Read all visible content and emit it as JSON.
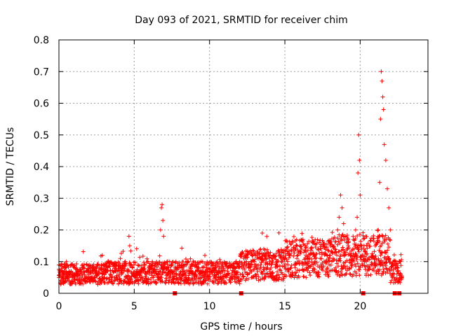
{
  "chart_data": {
    "type": "scatter",
    "title": "Day 093 of 2021, SRMTID for receiver chim",
    "xlabel": "GPS time / hours",
    "ylabel": "SRMTID / TECUs",
    "xlim": [
      0,
      24.5
    ],
    "ylim": [
      0,
      0.8
    ],
    "x_ticks": [
      0,
      5,
      10,
      15,
      20
    ],
    "x_tick_labels": [
      "0",
      "5",
      "10",
      "15",
      "20"
    ],
    "y_ticks": [
      0,
      0.1,
      0.2,
      0.3,
      0.4,
      0.5,
      0.6,
      0.7,
      0.8
    ],
    "y_tick_labels": [
      "0",
      "0.1",
      "0.2",
      "0.3",
      "0.4",
      "0.5",
      "0.6",
      "0.7",
      "0.8"
    ],
    "grid": true,
    "marker": "+",
    "color": "#ff0000",
    "series": [
      {
        "name": "SRMTID",
        "x": [
          0.0,
          0.1,
          0.2,
          0.3,
          0.4,
          0.5,
          0.6,
          0.7,
          0.8,
          0.9,
          1.0,
          1.2,
          1.4,
          1.6,
          1.8,
          2.0,
          2.2,
          2.4,
          2.6,
          2.8,
          3.0,
          3.2,
          3.4,
          3.6,
          3.8,
          4.0,
          4.2,
          4.4,
          4.6,
          4.65,
          4.7,
          4.8,
          5.0,
          5.2,
          5.4,
          5.6,
          5.8,
          6.0,
          6.2,
          6.4,
          6.6,
          6.75,
          6.8,
          6.85,
          6.9,
          6.95,
          7.0,
          7.2,
          7.4,
          7.6,
          7.8,
          8.0,
          8.2,
          8.4,
          8.6,
          8.8,
          9.0,
          9.2,
          9.4,
          9.6,
          9.8,
          10.0,
          10.2,
          10.4,
          10.6,
          10.8,
          11.0,
          11.2,
          11.4,
          11.6,
          11.8,
          12.0,
          12.2,
          12.4,
          12.6,
          12.8,
          13.0,
          13.2,
          13.4,
          13.5,
          13.6,
          13.8,
          14.0,
          14.2,
          14.4,
          14.6,
          14.8,
          15.0,
          15.2,
          15.4,
          15.6,
          15.8,
          16.0,
          16.2,
          16.4,
          16.6,
          16.8,
          17.0,
          17.2,
          17.4,
          17.6,
          17.8,
          18.0,
          18.2,
          18.4,
          18.5,
          18.6,
          18.7,
          18.8,
          18.9,
          19.0,
          19.2,
          19.4,
          19.6,
          19.7,
          19.8,
          19.85,
          19.9,
          19.95,
          20.0,
          20.1,
          20.2,
          20.4,
          20.6,
          20.8,
          21.0,
          21.2,
          21.3,
          21.35,
          21.4,
          21.45,
          21.5,
          21.55,
          21.6,
          21.7,
          21.8,
          21.9,
          22.0,
          22.5,
          22.6,
          22.7
        ],
        "y": [
          0.05,
          0.07,
          0.09,
          0.06,
          0.08,
          0.1,
          0.05,
          0.07,
          0.09,
          0.06,
          0.05,
          0.07,
          0.06,
          0.08,
          0.05,
          0.06,
          0.07,
          0.05,
          0.06,
          0.08,
          0.05,
          0.07,
          0.06,
          0.09,
          0.07,
          0.06,
          0.08,
          0.1,
          0.07,
          0.18,
          0.15,
          0.09,
          0.06,
          0.07,
          0.05,
          0.08,
          0.06,
          0.07,
          0.1,
          0.09,
          0.06,
          0.2,
          0.27,
          0.28,
          0.23,
          0.18,
          0.08,
          0.06,
          0.05,
          0.07,
          0.06,
          0.09,
          0.08,
          0.06,
          0.05,
          0.07,
          0.06,
          0.08,
          0.07,
          0.06,
          0.08,
          0.07,
          0.06,
          0.05,
          0.07,
          0.09,
          0.06,
          0.07,
          0.05,
          0.08,
          0.06,
          0.1,
          0.09,
          0.12,
          0.08,
          0.1,
          0.09,
          0.07,
          0.11,
          0.19,
          0.14,
          0.08,
          0.1,
          0.11,
          0.09,
          0.12,
          0.1,
          0.11,
          0.09,
          0.08,
          0.14,
          0.11,
          0.15,
          0.17,
          0.12,
          0.1,
          0.09,
          0.11,
          0.14,
          0.09,
          0.1,
          0.12,
          0.16,
          0.11,
          0.13,
          0.2,
          0.24,
          0.31,
          0.27,
          0.22,
          0.18,
          0.15,
          0.12,
          0.14,
          0.2,
          0.24,
          0.38,
          0.5,
          0.42,
          0.31,
          0.15,
          0.12,
          0.1,
          0.08,
          0.09,
          0.15,
          0.2,
          0.35,
          0.55,
          0.7,
          0.67,
          0.62,
          0.58,
          0.47,
          0.42,
          0.33,
          0.27,
          0.2,
          0.08,
          0.1,
          0.06
        ],
        "noise_points_note": "dense cloud of + markers around values 0.03–0.15 across 0–22.8 h"
      }
    ],
    "gap_markers_x": [
      7.7,
      12.1,
      20.2,
      22.3,
      22.6
    ],
    "gap_markers_y": 0.0
  }
}
